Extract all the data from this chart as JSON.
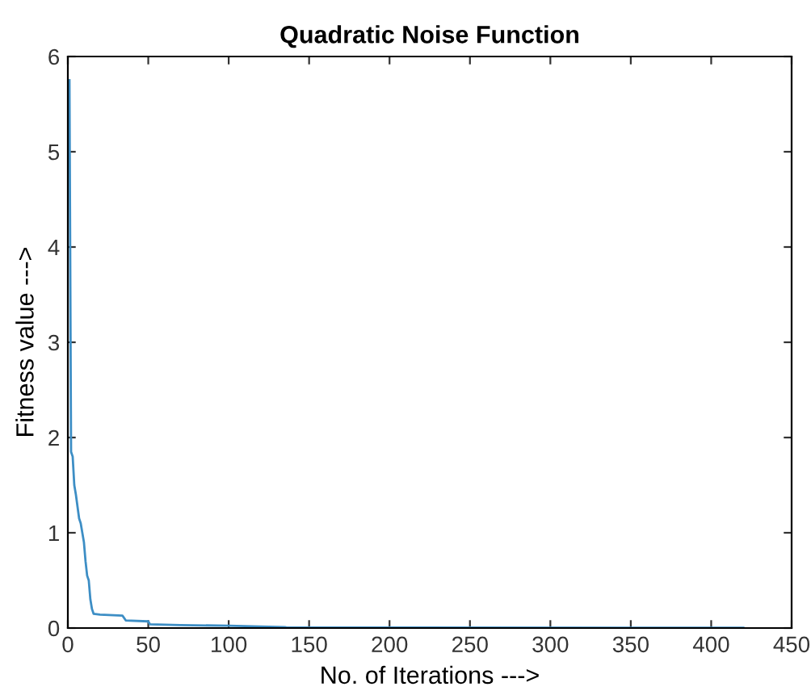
{
  "chart_data": {
    "type": "line",
    "title": "Quadratic Noise Function",
    "xlabel": "No. of Iterations --->",
    "ylabel": "Fitness value --->",
    "xlim": [
      0,
      450
    ],
    "ylim": [
      0,
      6
    ],
    "xticks": [
      0,
      50,
      100,
      150,
      200,
      250,
      300,
      350,
      400,
      450
    ],
    "yticks": [
      0,
      1,
      2,
      3,
      4,
      5,
      6
    ],
    "grid": false,
    "legend": false,
    "series": [
      {
        "color": "#3d8ec5",
        "x": [
          1,
          2,
          3,
          4,
          5,
          7,
          8,
          10,
          11,
          12,
          13,
          14,
          15,
          16,
          20,
          34,
          36,
          50,
          51,
          70,
          100,
          135,
          136,
          420
        ],
        "values": [
          5.75,
          1.85,
          1.8,
          1.5,
          1.4,
          1.15,
          1.1,
          0.9,
          0.7,
          0.55,
          0.5,
          0.3,
          0.2,
          0.15,
          0.14,
          0.13,
          0.08,
          0.07,
          0.04,
          0.03,
          0.025,
          0.01,
          0.005,
          0.003
        ]
      }
    ]
  }
}
